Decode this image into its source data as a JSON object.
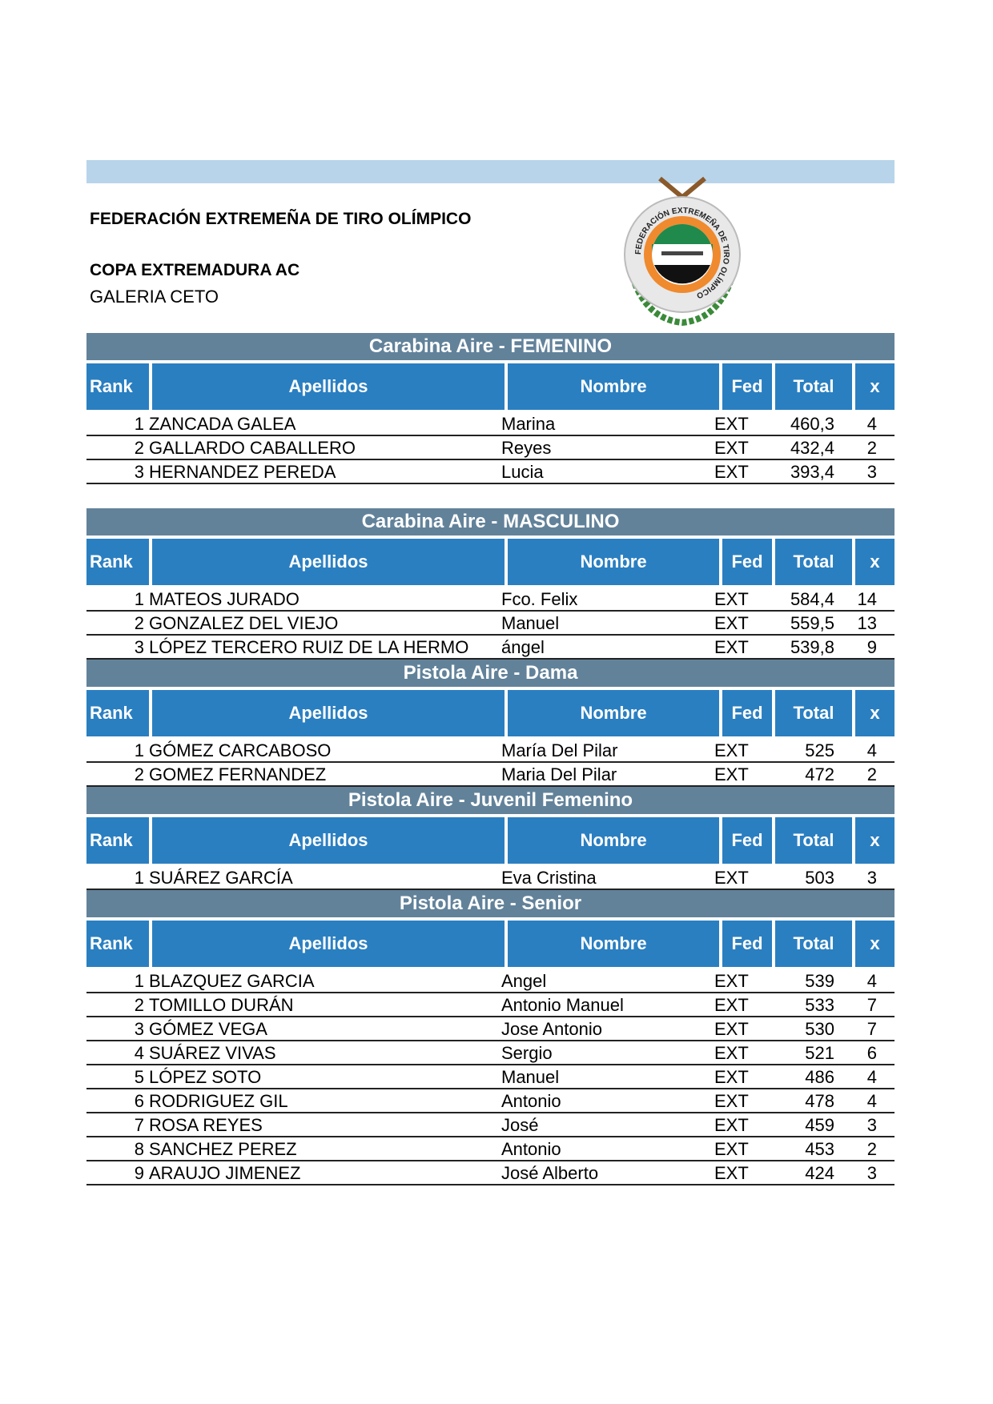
{
  "header": {
    "organization": "FEDERACIÓN EXTREMEÑA DE TIRO OLÍMPICO",
    "event": "COPA EXTREMADURA AC",
    "venue": "GALERIA CETO",
    "logo_text": "FEDERACIÓN EXTREMEÑA DE TIRO OLÍMPICO"
  },
  "columns": [
    "Rank",
    "Apellidos",
    "Nombre",
    "Fed",
    "Total",
    "x"
  ],
  "colors": {
    "top_bar": "#b8d4ea",
    "section_header": "#62829a",
    "column_header": "#2a7fc1"
  },
  "sections": [
    {
      "title": "Carabina Aire - FEMENINO",
      "rows": [
        [
          "1",
          "ZANCADA GALEA",
          "Marina",
          "EXT",
          "460,3",
          "4"
        ],
        [
          "2",
          "GALLARDO CABALLERO",
          "Reyes",
          "EXT",
          "432,4",
          "2"
        ],
        [
          "3",
          "HERNANDEZ PEREDA",
          "Lucia",
          "EXT",
          "393,4",
          "3"
        ]
      ]
    },
    {
      "title": "Carabina Aire - MASCULINO",
      "rows": [
        [
          "1",
          "MATEOS JURADO",
          "Fco.  Felix",
          "EXT",
          "584,4",
          "14"
        ],
        [
          "2",
          "GONZALEZ DEL VIEJO",
          "Manuel",
          "EXT",
          "559,5",
          "13"
        ],
        [
          "3",
          "LÓPEZ TERCERO RUIZ DE LA HERMO",
          "ángel",
          "EXT",
          "539,8",
          "9"
        ]
      ]
    },
    {
      "title": "Pistola Aire - Dama",
      "rows": [
        [
          "1",
          "GÓMEZ CARCABOSO",
          "María Del Pilar",
          "EXT",
          "525",
          "4"
        ],
        [
          "2",
          "GOMEZ FERNANDEZ",
          "Maria Del Pilar",
          "EXT",
          "472",
          "2"
        ]
      ]
    },
    {
      "title": "Pistola Aire - Juvenil Femenino",
      "rows": [
        [
          "1",
          "SUÁREZ GARCÍA",
          "Eva Cristina",
          "EXT",
          "503",
          "3"
        ]
      ]
    },
    {
      "title": "Pistola Aire - Senior",
      "rows": [
        [
          "1",
          "BLAZQUEZ GARCIA",
          "Angel",
          "EXT",
          "539",
          "4"
        ],
        [
          "2",
          "TOMILLO DURÁN",
          "Antonio Manuel",
          "EXT",
          "533",
          "7"
        ],
        [
          "3",
          "GÓMEZ VEGA",
          "Jose Antonio",
          "EXT",
          "530",
          "7"
        ],
        [
          "4",
          "SUÁREZ VIVAS",
          "Sergio",
          "EXT",
          "521",
          "6"
        ],
        [
          "5",
          "LÓPEZ SOTO",
          "Manuel",
          "EXT",
          "486",
          "4"
        ],
        [
          "6",
          "RODRIGUEZ GIL",
          "Antonio",
          "EXT",
          "478",
          "4"
        ],
        [
          "7",
          "ROSA REYES",
          "José",
          "EXT",
          "459",
          "3"
        ],
        [
          "8",
          "SANCHEZ PEREZ",
          "Antonio",
          "EXT",
          "453",
          "2"
        ],
        [
          "9",
          "ARAUJO JIMENEZ",
          "José Alberto",
          "EXT",
          "424",
          "3"
        ]
      ]
    }
  ]
}
